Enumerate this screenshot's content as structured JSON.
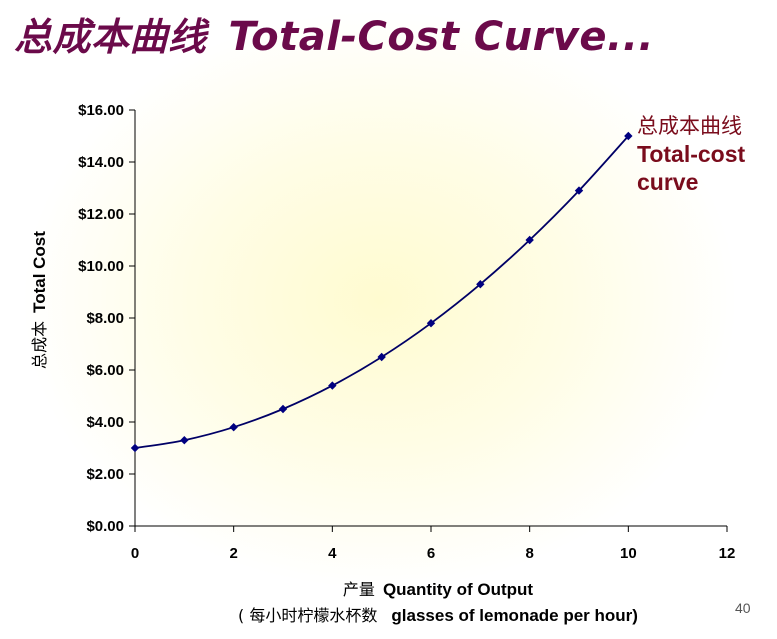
{
  "slide": {
    "title_cn": "总成本曲线",
    "title_en": "Total-Cost Curve...",
    "page_number": "40"
  },
  "chart_data": {
    "type": "line",
    "title": "",
    "xlabel_cn": "产量",
    "xlabel": "Quantity of Output",
    "xlabel_note_cn": "( 每小时柠檬水杯数",
    "xlabel_note": "glasses of lemonade per hour)",
    "ylabel_cn": "总成本",
    "ylabel": "Total Cost",
    "xlim": [
      0,
      12
    ],
    "ylim": [
      0,
      16
    ],
    "x_ticks": [
      "0",
      "2",
      "4",
      "6",
      "8",
      "10",
      "12"
    ],
    "y_ticks": [
      "$0.00",
      "$2.00",
      "$4.00",
      "$6.00",
      "$8.00",
      "$10.00",
      "$12.00",
      "$14.00",
      "$16.00"
    ],
    "series": [
      {
        "x": [
          0,
          1,
          2,
          3,
          4,
          5,
          6,
          7,
          8,
          9,
          10
        ],
        "values": [
          3.0,
          3.3,
          3.8,
          4.5,
          5.4,
          6.5,
          7.8,
          9.3,
          11.0,
          12.9,
          15.0
        ]
      }
    ],
    "annotation": {
      "cn": "总成本曲线",
      "en_line1": "Total-cost",
      "en_line2": "curve"
    },
    "colors": {
      "line": "#000066",
      "marker": "#000080",
      "title": "#6b0a4a",
      "annotation": "#7a0c1c"
    },
    "grid": false,
    "legend": "none"
  }
}
